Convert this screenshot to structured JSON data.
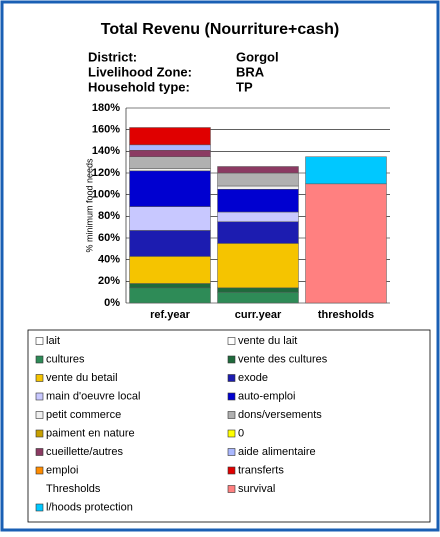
{
  "chart_data": {
    "type": "stacked_bar",
    "title": "Total Revenu (Nourriture+cash)",
    "info": [
      [
        "District:",
        "Gorgol"
      ],
      [
        "Livelihood Zone:",
        "BRA"
      ],
      [
        "Household type:",
        "TP"
      ]
    ],
    "y_label": "% minimum food needs",
    "categories": [
      "ref.year",
      "curr.year",
      "thresholds"
    ],
    "ylim": [
      0,
      180
    ],
    "yticks": [
      {
        "value": 0,
        "label": "0%"
      },
      {
        "value": 20,
        "label": "20%"
      },
      {
        "value": 40,
        "label": "40%"
      },
      {
        "value": 60,
        "label": "60%"
      },
      {
        "value": 80,
        "label": "80%"
      },
      {
        "value": 100,
        "label": "100%"
      },
      {
        "value": 120,
        "label": "120%"
      },
      {
        "value": 140,
        "label": "140%"
      },
      {
        "value": 160,
        "label": "160%"
      },
      {
        "value": 180,
        "label": "180%"
      }
    ],
    "grid": true,
    "series": [
      {
        "name": "lait",
        "color": "#ffffff",
        "values": [
          null,
          null,
          null
        ]
      },
      {
        "name": "vente du lait",
        "color": "#ffffff",
        "values": [
          null,
          null,
          null
        ]
      },
      {
        "name": "cultures",
        "color": "#2e8b57",
        "values": [
          14,
          10,
          null
        ]
      },
      {
        "name": "vente des cultures",
        "color": "#1f6a3c",
        "values": [
          4,
          4,
          null
        ]
      },
      {
        "name": "vente du betail",
        "color": "#f5c400",
        "values": [
          25,
          41,
          null
        ]
      },
      {
        "name": "exode",
        "color": "#1c1cb0",
        "values": [
          24,
          20,
          null
        ]
      },
      {
        "name": "main d'oeuvre local",
        "color": "#c8c8ff",
        "values": [
          22,
          9,
          null
        ]
      },
      {
        "name": "auto-emploi",
        "color": "#0000d0",
        "values": [
          33,
          21,
          null
        ]
      },
      {
        "name": "petit commerce",
        "color": "#f0f0f0",
        "values": [
          2,
          3,
          null
        ]
      },
      {
        "name": "dons/versements",
        "color": "#b0b0b0",
        "values": [
          11,
          12,
          null
        ]
      },
      {
        "name": "paiment en nature",
        "color": "#c8a000",
        "values": [
          null,
          null,
          null
        ]
      },
      {
        "name": "0",
        "color": "#ffff00",
        "values": [
          null,
          null,
          null
        ]
      },
      {
        "name": "cueillette/autres",
        "color": "#8b3a62",
        "values": [
          6,
          6,
          null
        ]
      },
      {
        "name": "aide alimentaire",
        "color": "#aab8ff",
        "values": [
          5,
          null,
          null
        ]
      },
      {
        "name": "emploi",
        "color": "#ff8c00",
        "values": [
          null,
          null,
          null
        ]
      },
      {
        "name": "transferts",
        "color": "#e00000",
        "values": [
          16,
          null,
          null
        ]
      },
      {
        "name": "Thresholds",
        "color": null,
        "values": [
          null,
          null,
          null
        ]
      },
      {
        "name": "survival",
        "color": "#ff8080",
        "values": [
          null,
          null,
          110
        ]
      },
      {
        "name": "l/hoods protection",
        "color": "#00c8ff",
        "values": [
          null,
          null,
          25
        ]
      }
    ]
  }
}
